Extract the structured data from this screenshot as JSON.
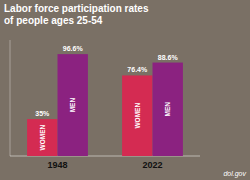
{
  "chart_data": {
    "type": "bar",
    "title": "Labor force participation rates",
    "subtitle": "of people ages 25-54",
    "categories": [
      "1948",
      "2022"
    ],
    "series": [
      {
        "name": "WOMEN",
        "color": "#d42b52",
        "values": [
          35.0,
          76.4
        ],
        "value_labels": [
          "35%",
          "76.4%"
        ]
      },
      {
        "name": "MEN",
        "color": "#8b2280",
        "values": [
          96.6,
          88.6
        ],
        "value_labels": [
          "96.6%",
          "88.6%"
        ]
      }
    ],
    "ylim": [
      0,
      110
    ],
    "tick_labels": "x",
    "grid": false,
    "data_labels": true,
    "annotations": [
      "dol.gov"
    ]
  }
}
